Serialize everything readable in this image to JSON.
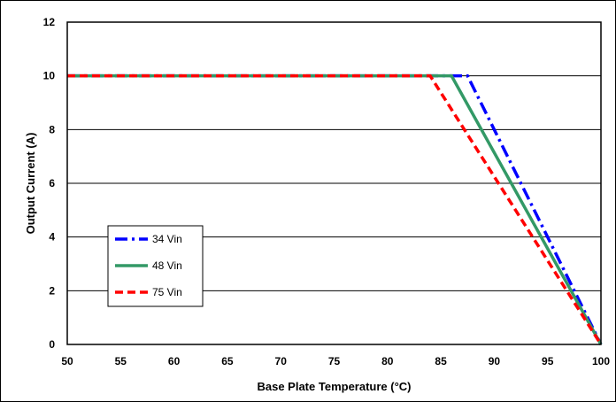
{
  "chart_data": {
    "type": "line",
    "title": "",
    "xlabel": "Base Plate Temperature (°C)",
    "ylabel": "Output Current (A)",
    "xlim": [
      50,
      100
    ],
    "ylim": [
      0,
      12
    ],
    "xticks": [
      "50",
      "55",
      "60",
      "65",
      "70",
      "75",
      "80",
      "85",
      "90",
      "95",
      "100"
    ],
    "yticks": [
      "0",
      "2",
      "4",
      "6",
      "8",
      "10",
      "12"
    ],
    "grid": "horizontal",
    "legend_position": "left-center",
    "series": [
      {
        "name": "34 Vin",
        "color": "#0000ff",
        "style": "dash-dot",
        "x": [
          50,
          87.5,
          100
        ],
        "y": [
          10,
          10,
          0
        ]
      },
      {
        "name": "48 Vin",
        "color": "#339966",
        "style": "solid",
        "x": [
          50,
          86,
          100
        ],
        "y": [
          10,
          10,
          0
        ]
      },
      {
        "name": "75 Vin",
        "color": "#ff0000",
        "style": "dashed",
        "x": [
          50,
          84,
          100
        ],
        "y": [
          10,
          10,
          0
        ]
      }
    ]
  }
}
